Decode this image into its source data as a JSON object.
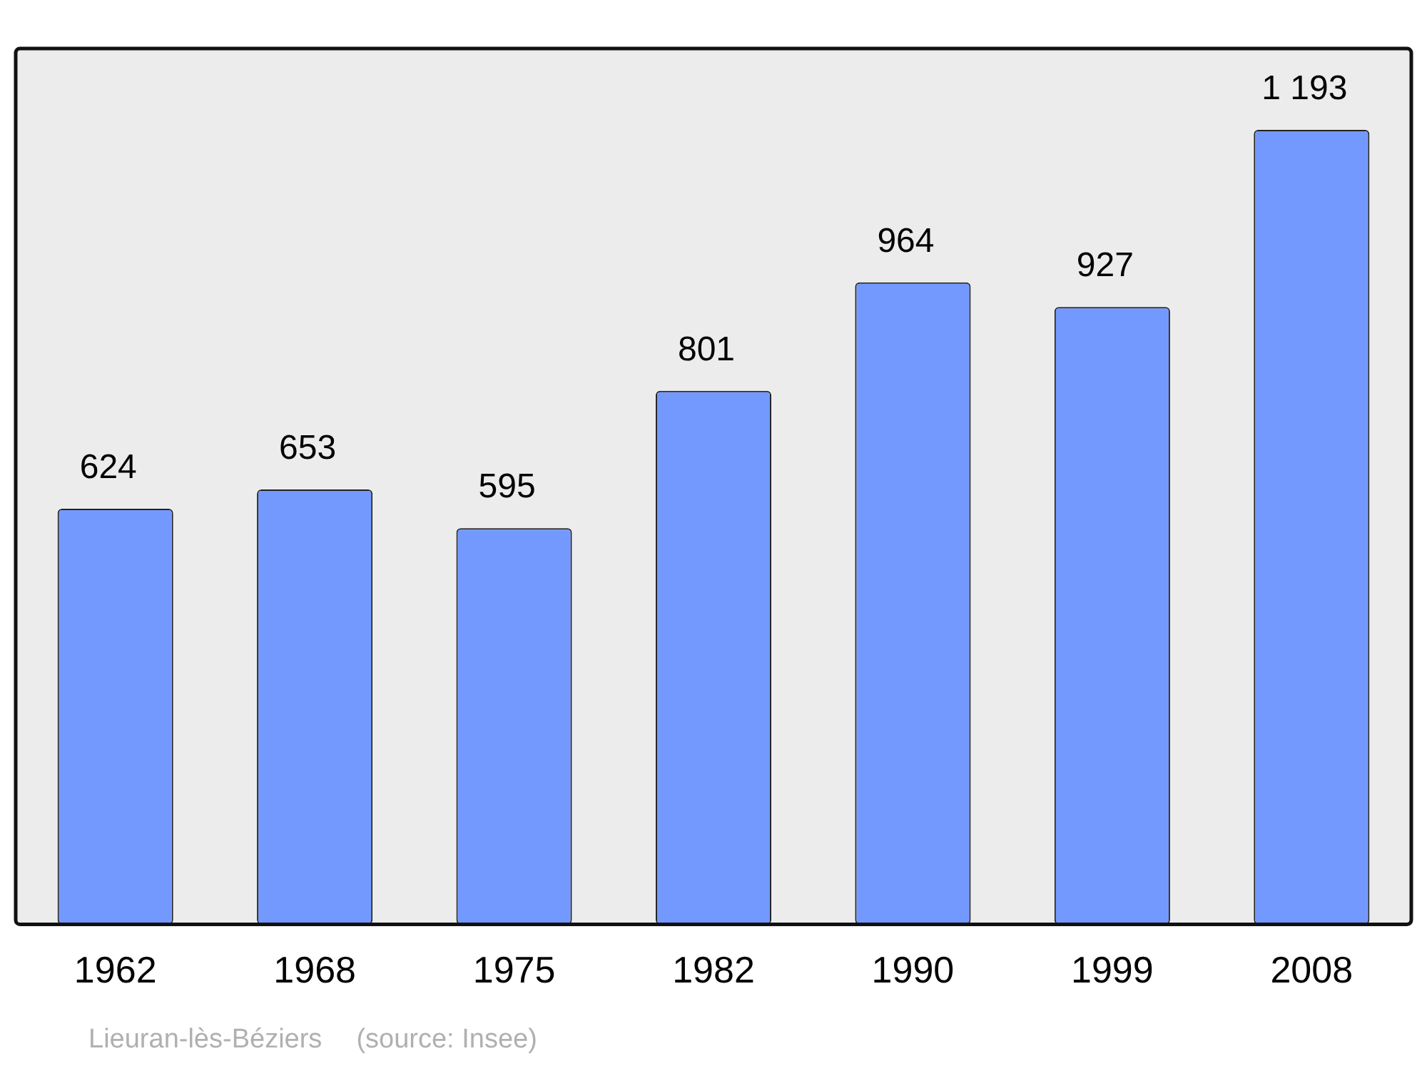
{
  "chart_data": {
    "type": "bar",
    "categories": [
      "1962",
      "1968",
      "1975",
      "1982",
      "1990",
      "1999",
      "2008"
    ],
    "values": [
      624,
      653,
      595,
      801,
      964,
      927,
      1193
    ],
    "value_labels": [
      "624",
      "653",
      "595",
      "801",
      "964",
      "927",
      "1 193"
    ],
    "color": "#7399ff",
    "grid": false,
    "legend": false,
    "annotations": [
      "Lieuran-lès-Béziers",
      "(source: Insee)"
    ]
  }
}
